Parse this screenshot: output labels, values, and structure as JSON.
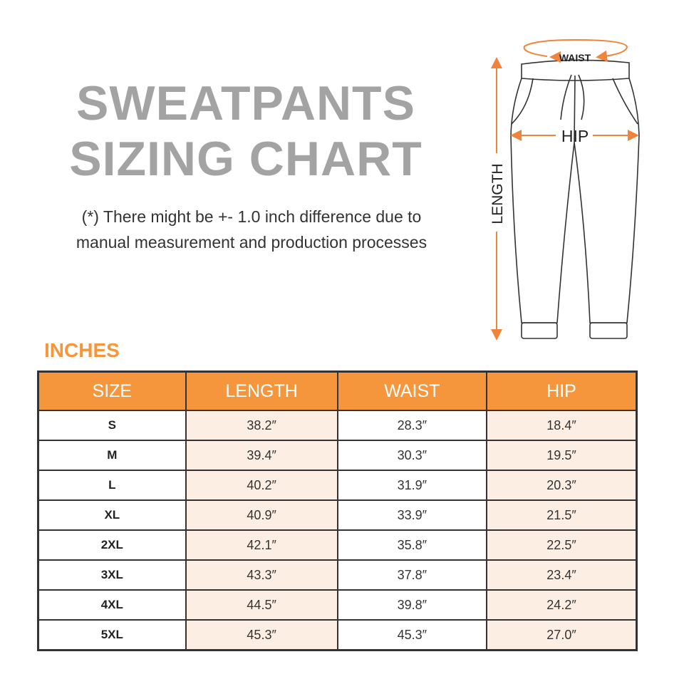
{
  "title": {
    "line1": "SWEATPANTS",
    "line2": "SIZING CHART"
  },
  "note": {
    "line1": "(*) There might be +- 1.0 inch difference due to",
    "line2": "manual measurement and production processes"
  },
  "unit": "INCHES",
  "diagram": {
    "waist": "WAIST",
    "hip": "HIP",
    "length": "LENGTH"
  },
  "colors": {
    "accent": "#f6963c",
    "tint": "#fdeee3",
    "title": "#a3a3a3"
  },
  "table": {
    "headers": [
      "SIZE",
      "LENGTH",
      "WAIST",
      "HIP"
    ],
    "rows": [
      [
        "S",
        "38.2″",
        "28.3″",
        "18.4″"
      ],
      [
        "M",
        "39.4″",
        "30.3″",
        "19.5″"
      ],
      [
        "L",
        "40.2″",
        "31.9″",
        "20.3″"
      ],
      [
        "XL",
        "40.9″",
        "33.9″",
        "21.5″"
      ],
      [
        "2XL",
        "42.1″",
        "35.8″",
        "22.5″"
      ],
      [
        "3XL",
        "43.3″",
        "37.8″",
        "23.4″"
      ],
      [
        "4XL",
        "44.5″",
        "39.8″",
        "24.2″"
      ],
      [
        "5XL",
        "45.3″",
        "45.3″",
        "27.0″"
      ]
    ]
  }
}
